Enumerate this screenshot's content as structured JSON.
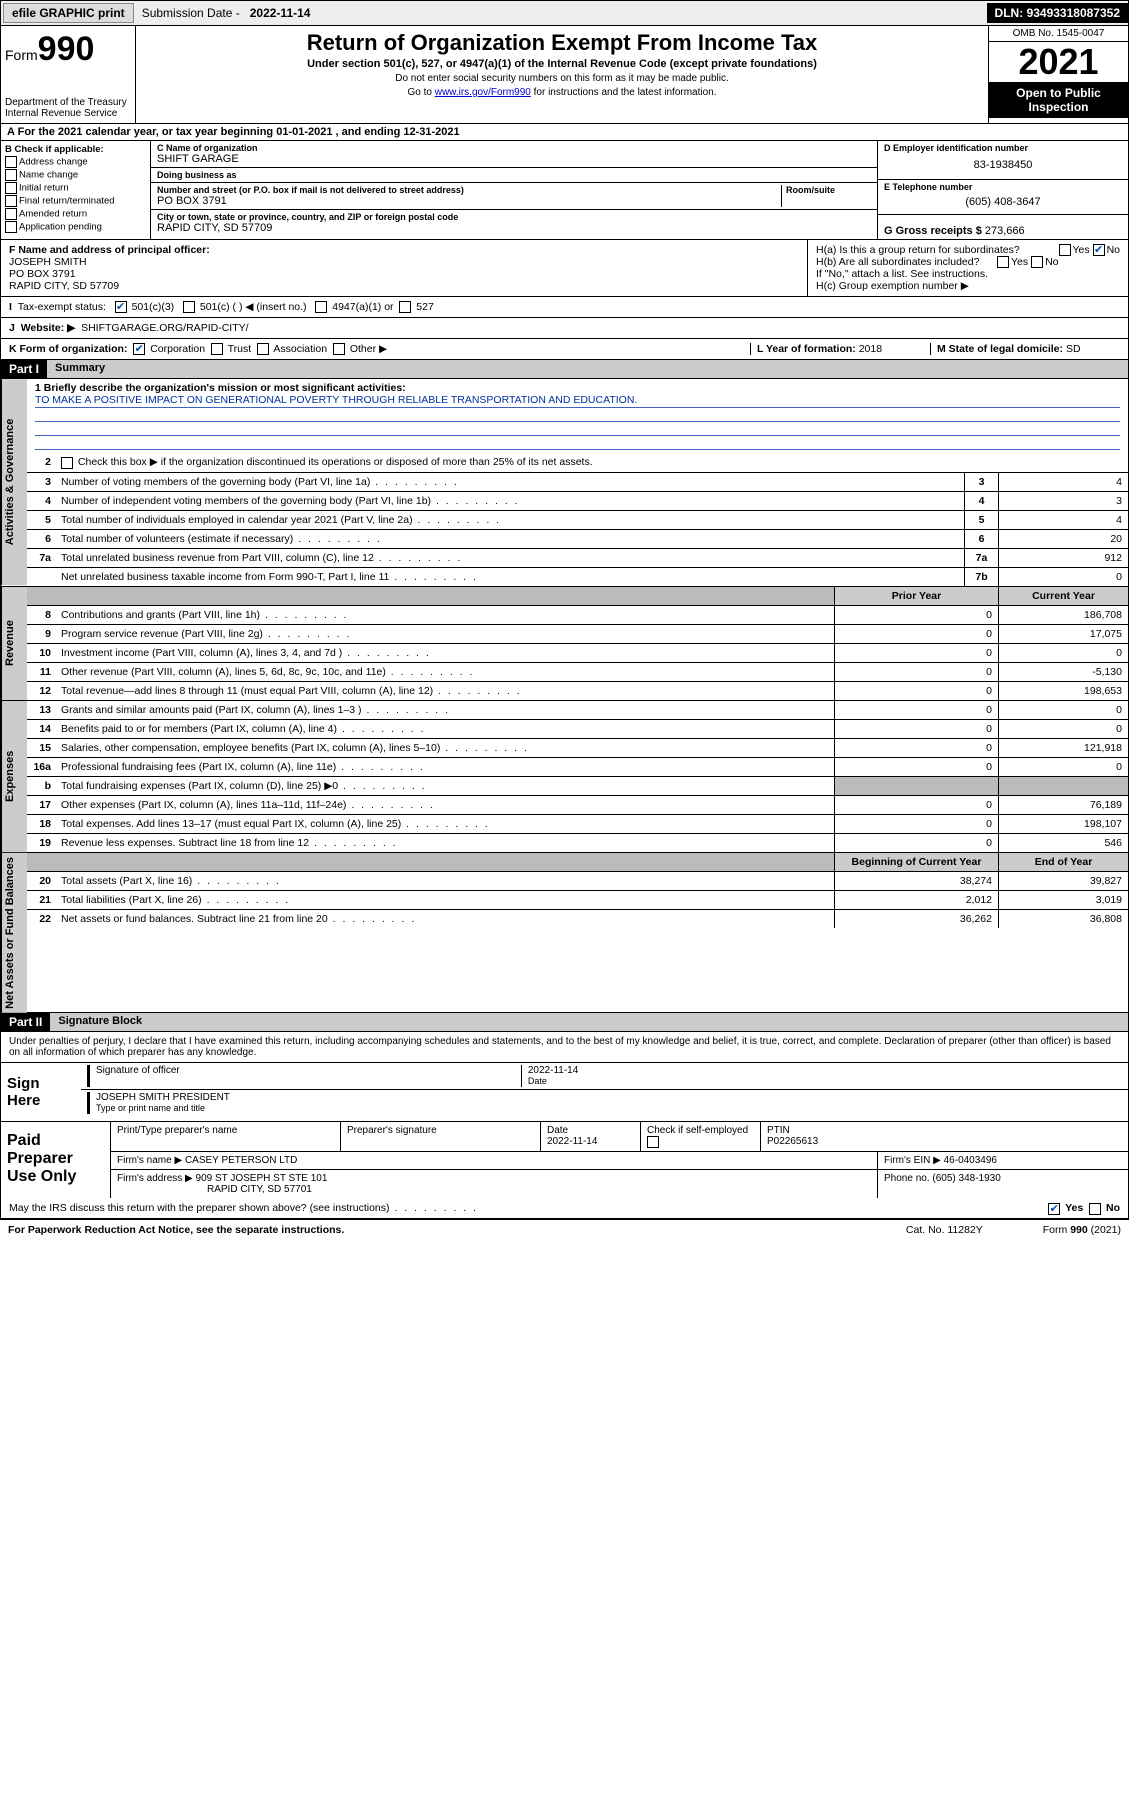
{
  "topbar": {
    "efile_btn": "efile GRAPHIC print",
    "sub_label": "Submission Date -",
    "sub_date": "2022-11-14",
    "dln_label": "DLN:",
    "dln": "93493318087352"
  },
  "header": {
    "form_word": "Form",
    "form_num": "990",
    "dept": "Department of the Treasury",
    "irs": "Internal Revenue Service",
    "title": "Return of Organization Exempt From Income Tax",
    "sub": "Under section 501(c), 527, or 4947(a)(1) of the Internal Revenue Code (except private foundations)",
    "note1": "Do not enter social security numbers on this form as it may be made public.",
    "note2_pre": "Go to ",
    "note2_link": "www.irs.gov/Form990",
    "note2_post": " for instructions and the latest information.",
    "omb": "OMB No. 1545-0047",
    "year": "2021",
    "open": "Open to Public Inspection"
  },
  "rowA": "For the 2021 calendar year, or tax year beginning 01-01-2021   , and ending 12-31-2021",
  "boxB": {
    "label": "B Check if applicable:",
    "opts": [
      "Address change",
      "Name change",
      "Initial return",
      "Final return/terminated",
      "Amended return",
      "Application pending"
    ]
  },
  "boxC": {
    "name_label": "C Name of organization",
    "name": "SHIFT GARAGE",
    "dba_label": "Doing business as",
    "dba": "",
    "addr_label": "Number and street (or P.O. box if mail is not delivered to street address)",
    "room_label": "Room/suite",
    "addr": "PO BOX 3791",
    "city_label": "City or town, state or province, country, and ZIP or foreign postal code",
    "city": "RAPID CITY, SD  57709"
  },
  "boxD": {
    "ein_label": "D Employer identification number",
    "ein": "83-1938450",
    "tel_label": "E Telephone number",
    "tel": "(605) 408-3647",
    "gross_label": "G Gross receipts $",
    "gross": "273,666"
  },
  "boxF": {
    "label": "F  Name and address of principal officer:",
    "name": "JOSEPH SMITH",
    "addr1": "PO BOX 3791",
    "addr2": "RAPID CITY, SD  57709"
  },
  "boxH": {
    "a": "H(a)  Is this a group return for subordinates?",
    "b": "H(b)  Are all subordinates included?",
    "b_note": "If \"No,\" attach a list. See instructions.",
    "c": "H(c)  Group exemption number ▶",
    "yes": "Yes",
    "no": "No"
  },
  "rowI": {
    "label": "Tax-exempt status:",
    "o1": "501(c)(3)",
    "o2": "501(c) (  ) ◀ (insert no.)",
    "o3": "4947(a)(1) or",
    "o4": "527"
  },
  "rowJ": {
    "label": "Website: ▶",
    "val": "SHIFTGARAGE.ORG/RAPID-CITY/"
  },
  "rowK": {
    "label": "K Form of organization:",
    "o1": "Corporation",
    "o2": "Trust",
    "o3": "Association",
    "o4": "Other ▶",
    "l_label": "L Year of formation:",
    "l_val": "2018",
    "m_label": "M State of legal domicile:",
    "m_val": "SD"
  },
  "partI": {
    "hdr": "Part I",
    "title": "Summary",
    "q1_label": "1  Briefly describe the organization's mission or most significant activities:",
    "q1_val": "TO MAKE A POSITIVE IMPACT ON GENERATIONAL POVERTY THROUGH RELIABLE TRANSPORTATION AND EDUCATION.",
    "q2": "Check this box ▶      if the organization discontinued its operations or disposed of more than 25% of its net assets.",
    "vtab1": "Activities & Governance",
    "vtab2": "Revenue",
    "vtab3": "Expenses",
    "vtab4": "Net Assets or Fund Balances",
    "prior": "Prior Year",
    "current": "Current Year",
    "beg": "Beginning of Current Year",
    "end": "End of Year",
    "lines_gov": [
      {
        "n": "3",
        "d": "Number of voting members of the governing body (Part VI, line 1a)",
        "box": "3",
        "v": "4"
      },
      {
        "n": "4",
        "d": "Number of independent voting members of the governing body (Part VI, line 1b)",
        "box": "4",
        "v": "3"
      },
      {
        "n": "5",
        "d": "Total number of individuals employed in calendar year 2021 (Part V, line 2a)",
        "box": "5",
        "v": "4"
      },
      {
        "n": "6",
        "d": "Total number of volunteers (estimate if necessary)",
        "box": "6",
        "v": "20"
      },
      {
        "n": "7a",
        "d": "Total unrelated business revenue from Part VIII, column (C), line 12",
        "box": "7a",
        "v": "912"
      },
      {
        "n": "",
        "d": "Net unrelated business taxable income from Form 990-T, Part I, line 11",
        "box": "7b",
        "v": "0"
      }
    ],
    "lines_rev": [
      {
        "n": "8",
        "d": "Contributions and grants (Part VIII, line 1h)",
        "p": "0",
        "c": "186,708"
      },
      {
        "n": "9",
        "d": "Program service revenue (Part VIII, line 2g)",
        "p": "0",
        "c": "17,075"
      },
      {
        "n": "10",
        "d": "Investment income (Part VIII, column (A), lines 3, 4, and 7d )",
        "p": "0",
        "c": "0"
      },
      {
        "n": "11",
        "d": "Other revenue (Part VIII, column (A), lines 5, 6d, 8c, 9c, 10c, and 11e)",
        "p": "0",
        "c": "-5,130"
      },
      {
        "n": "12",
        "d": "Total revenue—add lines 8 through 11 (must equal Part VIII, column (A), line 12)",
        "p": "0",
        "c": "198,653"
      }
    ],
    "lines_exp": [
      {
        "n": "13",
        "d": "Grants and similar amounts paid (Part IX, column (A), lines 1–3 )",
        "p": "0",
        "c": "0"
      },
      {
        "n": "14",
        "d": "Benefits paid to or for members (Part IX, column (A), line 4)",
        "p": "0",
        "c": "0"
      },
      {
        "n": "15",
        "d": "Salaries, other compensation, employee benefits (Part IX, column (A), lines 5–10)",
        "p": "0",
        "c": "121,918"
      },
      {
        "n": "16a",
        "d": "Professional fundraising fees (Part IX, column (A), line 11e)",
        "p": "0",
        "c": "0"
      },
      {
        "n": "b",
        "d": "Total fundraising expenses (Part IX, column (D), line 25) ▶0",
        "p": "",
        "c": "",
        "shade": true
      },
      {
        "n": "17",
        "d": "Other expenses (Part IX, column (A), lines 11a–11d, 11f–24e)",
        "p": "0",
        "c": "76,189"
      },
      {
        "n": "18",
        "d": "Total expenses. Add lines 13–17 (must equal Part IX, column (A), line 25)",
        "p": "0",
        "c": "198,107"
      },
      {
        "n": "19",
        "d": "Revenue less expenses. Subtract line 18 from line 12",
        "p": "0",
        "c": "546"
      }
    ],
    "lines_net": [
      {
        "n": "20",
        "d": "Total assets (Part X, line 16)",
        "p": "38,274",
        "c": "39,827"
      },
      {
        "n": "21",
        "d": "Total liabilities (Part X, line 26)",
        "p": "2,012",
        "c": "3,019"
      },
      {
        "n": "22",
        "d": "Net assets or fund balances. Subtract line 21 from line 20",
        "p": "36,262",
        "c": "36,808"
      }
    ]
  },
  "partII": {
    "hdr": "Part II",
    "title": "Signature Block",
    "penalty": "Under penalties of perjury, I declare that I have examined this return, including accompanying schedules and statements, and to the best of my knowledge and belief, it is true, correct, and complete. Declaration of preparer (other than officer) is based on all information of which preparer has any knowledge.",
    "sign_here": "Sign Here",
    "sig_officer": "Signature of officer",
    "sig_date_lbl": "Date",
    "sig_date": "2022-11-14",
    "sig_name": "JOSEPH SMITH  PRESIDENT",
    "sig_name_lbl": "Type or print name and title",
    "paid": "Paid Preparer Use Only",
    "pp_name_lbl": "Print/Type preparer's name",
    "pp_sig_lbl": "Preparer's signature",
    "pp_date_lbl": "Date",
    "pp_date": "2022-11-14",
    "pp_check_lbl": "Check       if self-employed",
    "pp_ptin_lbl": "PTIN",
    "pp_ptin": "P02265613",
    "firm_name_lbl": "Firm's name    ▶",
    "firm_name": "CASEY PETERSON LTD",
    "firm_ein_lbl": "Firm's EIN ▶",
    "firm_ein": "46-0403496",
    "firm_addr_lbl": "Firm's address ▶",
    "firm_addr1": "909 ST JOSEPH ST STE 101",
    "firm_addr2": "RAPID CITY, SD  57701",
    "firm_phone_lbl": "Phone no.",
    "firm_phone": "(605) 348-1930",
    "may_irs": "May the IRS discuss this return with the preparer shown above? (see instructions)"
  },
  "footer": {
    "left": "For Paperwork Reduction Act Notice, see the separate instructions.",
    "mid": "Cat. No. 11282Y",
    "right": "Form 990 (2021)"
  }
}
